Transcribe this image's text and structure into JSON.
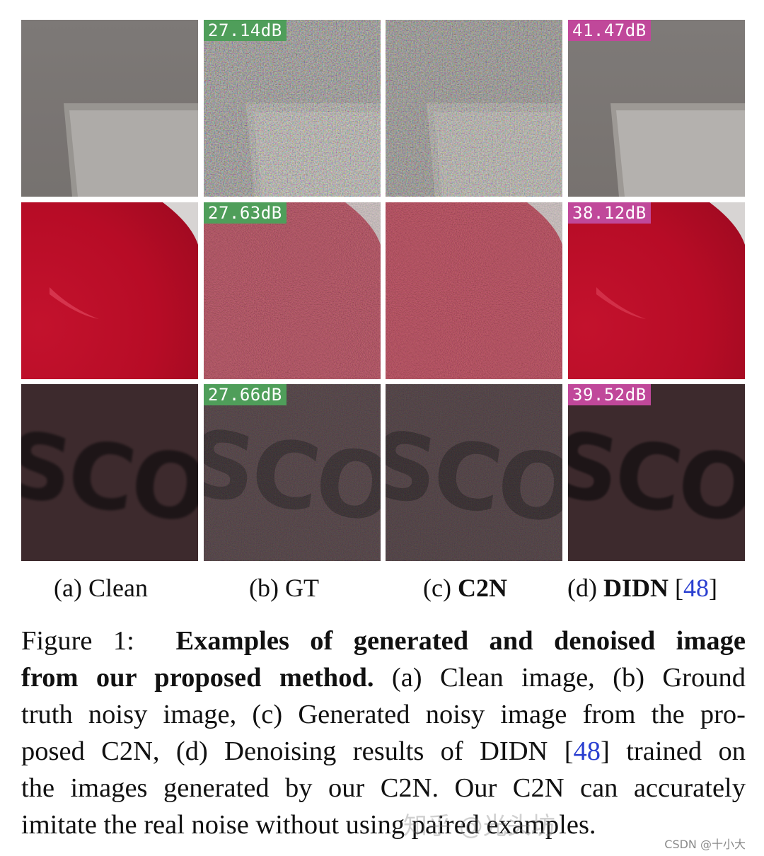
{
  "figure": {
    "rows": [
      {
        "scene": "gray-wall",
        "gt_psnr": "27.14dB",
        "didn_psnr": "41.47dB"
      },
      {
        "scene": "red-object",
        "gt_psnr": "27.63dB",
        "didn_psnr": "38.12dB"
      },
      {
        "scene": "dark-text",
        "gt_psnr": "27.66dB",
        "didn_psnr": "39.52dB"
      }
    ],
    "scene_text": "SCOP",
    "colors": {
      "gt_badge": "#4f9e5a",
      "didn_badge": "#c0489a",
      "link": "#2a3fd0"
    },
    "subcaptions": {
      "a_prefix": "(a)",
      "a_label": "Clean",
      "b_prefix": "(b)",
      "b_label": "GT",
      "c_prefix": "(c)",
      "c_label": "C2N",
      "d_prefix": "(d)",
      "d_label": "DIDN",
      "d_ref": "48",
      "bracket_open": "[",
      "bracket_close": "]"
    }
  },
  "caption": {
    "label": "Figure 1:",
    "title_part1": "Examples of generated and denoised image",
    "title_part2": "from our proposed method.",
    "line2_rest": "(a) Clean image, (b) Ground",
    "line3": "truth noisy image, (c) Generated noisy image from the pro-",
    "line4_a": "posed C2N, (d) Denoising results of DIDN [",
    "line4_ref": "48",
    "line4_b": "] trained on",
    "line5": "the images generated by our C2N. Our C2N can accurately",
    "line6": "imitate the real noise without using paired examples."
  },
  "watermark": {
    "text": "CSDN @十小大",
    "faint": "知乎 @光头坊"
  }
}
